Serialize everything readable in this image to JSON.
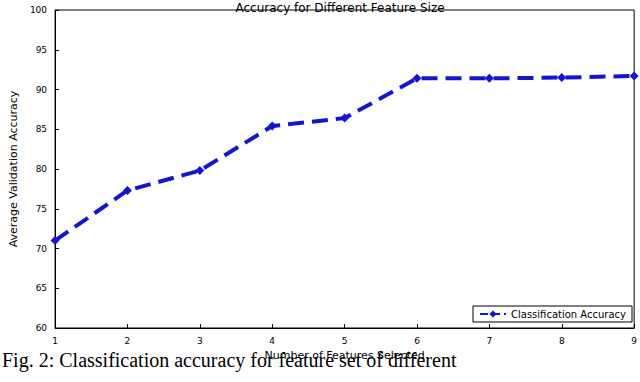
{
  "chart_data": {
    "type": "line",
    "title": "Accuracy for Different Feature Size",
    "x_label": "Number of Features Selected",
    "y_label": "Average Validation Accuracy",
    "caption": "Fig. 2: Classification accuracy for feature set of different",
    "x": [
      1,
      2,
      3,
      4,
      5,
      6,
      7,
      8,
      9
    ],
    "series": [
      {
        "name": "Classification Accuracy",
        "color": "#1414d2",
        "marker": "diamond",
        "line_style": "dashed",
        "values": [
          71.0,
          77.3,
          79.8,
          85.4,
          86.4,
          91.4,
          91.4,
          91.5,
          91.7
        ]
      }
    ],
    "xlim": [
      1,
      9
    ],
    "xticks": [
      1,
      2,
      3,
      4,
      5,
      6,
      7,
      8,
      9
    ],
    "ylim": [
      60,
      100
    ],
    "yticks": [
      60,
      65,
      70,
      75,
      80,
      85,
      90,
      95,
      100
    ],
    "grid": false,
    "legend": "lower right"
  }
}
